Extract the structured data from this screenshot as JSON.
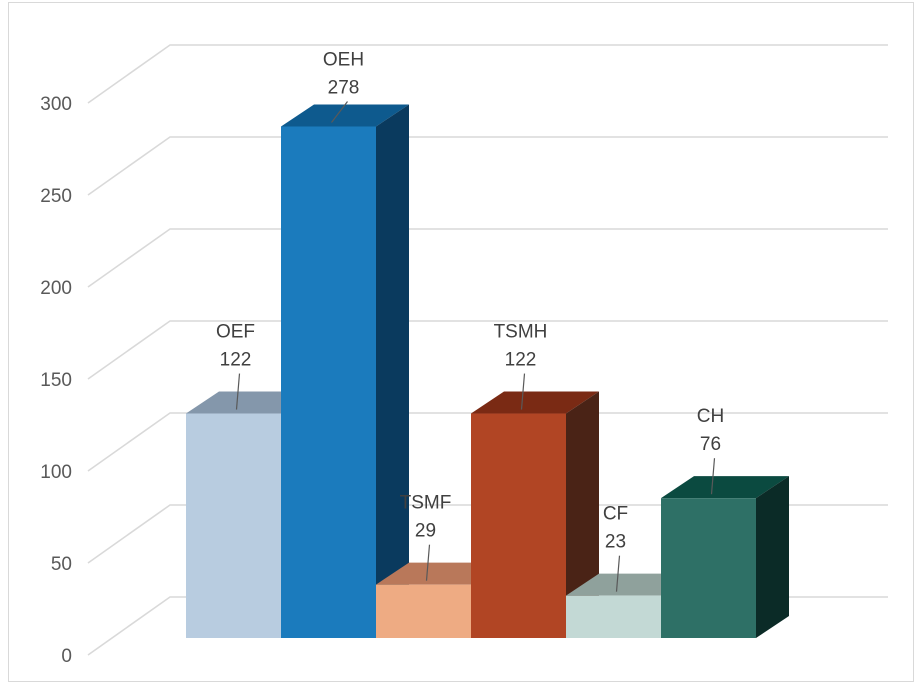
{
  "chart_data": {
    "type": "bar",
    "title": "",
    "xlabel": "",
    "ylabel": "",
    "ylim": [
      0,
      300
    ],
    "yticks": [
      0,
      50,
      100,
      150,
      200,
      250,
      300
    ],
    "grid": true,
    "legend": "none",
    "three_d": true,
    "categories": [
      "OEF",
      "OEH",
      "TSMF",
      "TSMH",
      "CF",
      "CH"
    ],
    "values": [
      122,
      278,
      29,
      122,
      23,
      76
    ],
    "data_labels": [
      {
        "category": "OEF",
        "value": "122"
      },
      {
        "category": "OEH",
        "value": "278"
      },
      {
        "category": "TSMF",
        "value": "29"
      },
      {
        "category": "TSMH",
        "value": "122"
      },
      {
        "category": "CF",
        "value": "23"
      },
      {
        "category": "CH",
        "value": "76"
      }
    ],
    "colors": [
      {
        "front": "#b8cce0",
        "top": "#8497ab",
        "side": "#8b9db0"
      },
      {
        "front": "#1b7bbd",
        "top": "#0e5a8e",
        "side": "#0a3a5e"
      },
      {
        "front": "#eeab83",
        "top": "#b9785a",
        "side": "#a86a4d"
      },
      {
        "front": "#b14524",
        "top": "#7a2a14",
        "side": "#4a2316"
      },
      {
        "front": "#c3d9d5",
        "top": "#8fa19c",
        "side": "#8fa19c"
      },
      {
        "front": "#2e7066",
        "top": "#0b4a40",
        "side": "#0b2b27"
      }
    ]
  }
}
